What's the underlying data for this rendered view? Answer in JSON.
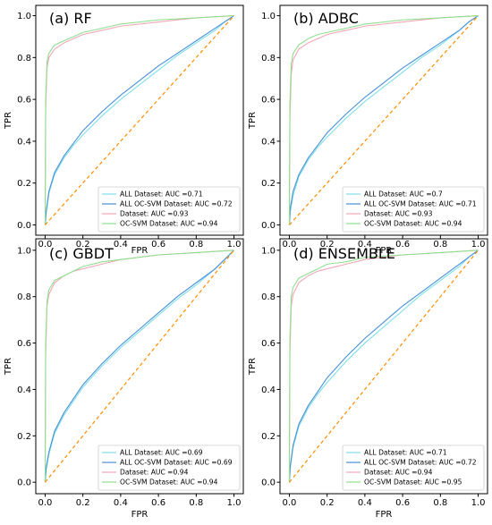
{
  "chart_data": [
    {
      "type": "line",
      "title": "(a) RF",
      "xlabel": "FPR",
      "ylabel": "TPR",
      "xlim": [
        0,
        1
      ],
      "ylim": [
        0,
        1
      ],
      "xticks": [
        "0.0",
        "0.2",
        "0.4",
        "0.6",
        "0.8",
        "1.0"
      ],
      "yticks": [
        "0.0",
        "0.2",
        "0.4",
        "0.6",
        "0.8",
        "1.0"
      ],
      "legend_position": "lower-right",
      "series": [
        {
          "name": "ALL Dataset: AUC =0.71",
          "color": "#7ee0e8",
          "x": [
            0,
            0.005,
            0.02,
            0.05,
            0.1,
            0.15,
            0.2,
            0.3,
            0.4,
            0.5,
            0.6,
            0.7,
            0.8,
            0.9,
            0.95,
            1.0
          ],
          "y": [
            0,
            0.05,
            0.15,
            0.24,
            0.32,
            0.38,
            0.43,
            0.52,
            0.6,
            0.67,
            0.74,
            0.81,
            0.87,
            0.93,
            0.97,
            1.0
          ]
        },
        {
          "name": "ALL OC-SVM Dataset: AUC =0.72",
          "color": "#4a90d9",
          "x": [
            0,
            0.005,
            0.02,
            0.05,
            0.1,
            0.15,
            0.2,
            0.3,
            0.4,
            0.5,
            0.6,
            0.7,
            0.8,
            0.9,
            0.95,
            1.0
          ],
          "y": [
            0,
            0.06,
            0.16,
            0.25,
            0.33,
            0.39,
            0.45,
            0.54,
            0.62,
            0.69,
            0.76,
            0.82,
            0.88,
            0.94,
            0.97,
            1.0
          ]
        },
        {
          "name": "Dataset: AUC =0.93",
          "color": "#f2a7b8",
          "x": [
            0,
            0.003,
            0.01,
            0.02,
            0.05,
            0.1,
            0.15,
            0.2,
            0.3,
            0.4,
            0.6,
            0.8,
            1.0
          ],
          "y": [
            0,
            0.55,
            0.75,
            0.8,
            0.84,
            0.87,
            0.89,
            0.91,
            0.93,
            0.95,
            0.97,
            0.99,
            1.0
          ]
        },
        {
          "name": "OC-SVM Dataset: AUC =0.94",
          "color": "#8fe08f",
          "x": [
            0,
            0.003,
            0.01,
            0.02,
            0.05,
            0.1,
            0.15,
            0.2,
            0.3,
            0.4,
            0.6,
            0.8,
            1.0
          ],
          "y": [
            0,
            0.6,
            0.78,
            0.82,
            0.86,
            0.88,
            0.9,
            0.92,
            0.94,
            0.96,
            0.98,
            0.99,
            1.0
          ]
        },
        {
          "name": "",
          "color": "#ff8c00",
          "dashed": true,
          "x": [
            0,
            1
          ],
          "y": [
            0,
            1
          ]
        }
      ]
    },
    {
      "type": "line",
      "title": "(b) ADBC",
      "xlabel": "FPR",
      "ylabel": "TPR",
      "xlim": [
        0,
        1
      ],
      "ylim": [
        0,
        1
      ],
      "xticks": [
        "0.0",
        "0.2",
        "0.4",
        "0.6",
        "0.8",
        "1.0"
      ],
      "yticks": [
        "0.0",
        "0.2",
        "0.4",
        "0.6",
        "0.8",
        "1.0"
      ],
      "legend_position": "lower-right",
      "series": [
        {
          "name": "ALL Dataset: AUC =0.7",
          "color": "#7ee0e8",
          "x": [
            0,
            0.005,
            0.02,
            0.05,
            0.1,
            0.15,
            0.2,
            0.3,
            0.4,
            0.5,
            0.6,
            0.7,
            0.8,
            0.9,
            0.95,
            1.0
          ],
          "y": [
            0,
            0.06,
            0.14,
            0.23,
            0.31,
            0.37,
            0.42,
            0.51,
            0.59,
            0.66,
            0.73,
            0.8,
            0.86,
            0.93,
            0.97,
            1.0
          ]
        },
        {
          "name": "ALL OC-SVM Dataset: AUC =0.71",
          "color": "#4a90d9",
          "x": [
            0,
            0.005,
            0.02,
            0.05,
            0.1,
            0.15,
            0.2,
            0.3,
            0.4,
            0.5,
            0.6,
            0.7,
            0.8,
            0.9,
            0.95,
            1.0
          ],
          "y": [
            0,
            0.08,
            0.16,
            0.24,
            0.32,
            0.38,
            0.44,
            0.53,
            0.61,
            0.68,
            0.75,
            0.81,
            0.87,
            0.93,
            0.97,
            1.0
          ]
        },
        {
          "name": "Dataset: AUC =0.93",
          "color": "#f2a7b8",
          "x": [
            0,
            0.003,
            0.01,
            0.02,
            0.05,
            0.1,
            0.15,
            0.2,
            0.3,
            0.4,
            0.6,
            0.8,
            1.0
          ],
          "y": [
            0,
            0.5,
            0.72,
            0.79,
            0.84,
            0.87,
            0.89,
            0.91,
            0.93,
            0.95,
            0.97,
            0.99,
            1.0
          ]
        },
        {
          "name": "OC-SVM Dataset: AUC =0.94",
          "color": "#8fe08f",
          "x": [
            0,
            0.003,
            0.01,
            0.02,
            0.05,
            0.1,
            0.15,
            0.2,
            0.3,
            0.4,
            0.6,
            0.8,
            1.0
          ],
          "y": [
            0,
            0.58,
            0.77,
            0.82,
            0.86,
            0.89,
            0.91,
            0.92,
            0.94,
            0.96,
            0.98,
            0.99,
            1.0
          ]
        },
        {
          "name": "",
          "color": "#ff8c00",
          "dashed": true,
          "x": [
            0,
            1
          ],
          "y": [
            0,
            1
          ]
        }
      ]
    },
    {
      "type": "line",
      "title": "(c) GBDT",
      "xlabel": "FPR",
      "ylabel": "TPR",
      "xlim": [
        0,
        1
      ],
      "ylim": [
        0,
        1
      ],
      "xticks": [
        "0.0",
        "0.2",
        "0.4",
        "0.6",
        "0.8",
        "1.0"
      ],
      "yticks": [
        "0.0",
        "0.2",
        "0.4",
        "0.6",
        "0.8",
        "1.0"
      ],
      "legend_position": "lower-right",
      "series": [
        {
          "name": "ALL Dataset: AUC =0.69",
          "color": "#7ee0e8",
          "x": [
            0,
            0.005,
            0.02,
            0.05,
            0.1,
            0.15,
            0.2,
            0.3,
            0.4,
            0.5,
            0.6,
            0.7,
            0.8,
            0.9,
            0.95,
            1.0
          ],
          "y": [
            0,
            0.05,
            0.12,
            0.21,
            0.29,
            0.35,
            0.41,
            0.5,
            0.58,
            0.65,
            0.72,
            0.79,
            0.85,
            0.92,
            0.96,
            1.0
          ]
        },
        {
          "name": "ALL OC-SVM Dataset: AUC =0.69",
          "color": "#4a90d9",
          "x": [
            0,
            0.005,
            0.02,
            0.05,
            0.1,
            0.15,
            0.2,
            0.3,
            0.4,
            0.5,
            0.6,
            0.7,
            0.8,
            0.9,
            0.95,
            1.0
          ],
          "y": [
            0,
            0.06,
            0.13,
            0.22,
            0.3,
            0.36,
            0.42,
            0.51,
            0.59,
            0.66,
            0.73,
            0.8,
            0.86,
            0.92,
            0.96,
            1.0
          ]
        },
        {
          "name": "Dataset: AUC =0.94",
          "color": "#f2a7b8",
          "x": [
            0,
            0.003,
            0.01,
            0.02,
            0.05,
            0.1,
            0.15,
            0.2,
            0.3,
            0.4,
            0.6,
            0.8,
            1.0
          ],
          "y": [
            0,
            0.55,
            0.76,
            0.81,
            0.86,
            0.89,
            0.91,
            0.92,
            0.94,
            0.96,
            0.98,
            0.99,
            1.0
          ]
        },
        {
          "name": "OC-SVM Dataset: AUC =0.94",
          "color": "#8fe08f",
          "x": [
            0,
            0.003,
            0.01,
            0.02,
            0.05,
            0.1,
            0.15,
            0.2,
            0.3,
            0.4,
            0.6,
            0.8,
            1.0
          ],
          "y": [
            0,
            0.6,
            0.78,
            0.83,
            0.87,
            0.89,
            0.91,
            0.93,
            0.95,
            0.96,
            0.98,
            0.99,
            1.0
          ]
        },
        {
          "name": "",
          "color": "#ff8c00",
          "dashed": true,
          "x": [
            0,
            1
          ],
          "y": [
            0,
            1
          ]
        }
      ]
    },
    {
      "type": "line",
      "title": "(d) ENSEMBLE",
      "xlabel": "FPR",
      "ylabel": "TPR",
      "xlim": [
        0,
        1
      ],
      "ylim": [
        0,
        1
      ],
      "xticks": [
        "0.0",
        "0.2",
        "0.4",
        "0.6",
        "0.8",
        "1.0"
      ],
      "yticks": [
        "0.0",
        "0.2",
        "0.4",
        "0.6",
        "0.8",
        "1.0"
      ],
      "legend_position": "lower-right",
      "series": [
        {
          "name": "ALL Dataset: AUC =0.71",
          "color": "#7ee0e8",
          "x": [
            0,
            0.005,
            0.02,
            0.05,
            0.1,
            0.15,
            0.2,
            0.3,
            0.4,
            0.5,
            0.6,
            0.7,
            0.8,
            0.9,
            0.95,
            1.0
          ],
          "y": [
            0,
            0.06,
            0.15,
            0.24,
            0.32,
            0.38,
            0.43,
            0.52,
            0.6,
            0.67,
            0.74,
            0.81,
            0.87,
            0.93,
            0.97,
            1.0
          ]
        },
        {
          "name": "ALL OC-SVM Dataset: AUC =0.72",
          "color": "#4a90d9",
          "x": [
            0,
            0.005,
            0.02,
            0.05,
            0.1,
            0.15,
            0.2,
            0.3,
            0.4,
            0.5,
            0.6,
            0.7,
            0.8,
            0.9,
            0.95,
            1.0
          ],
          "y": [
            0,
            0.07,
            0.16,
            0.25,
            0.33,
            0.39,
            0.45,
            0.54,
            0.62,
            0.69,
            0.76,
            0.82,
            0.88,
            0.94,
            0.97,
            1.0
          ]
        },
        {
          "name": "Dataset: AUC =0.94",
          "color": "#f2a7b8",
          "x": [
            0,
            0.003,
            0.01,
            0.02,
            0.05,
            0.1,
            0.15,
            0.2,
            0.3,
            0.4,
            0.6,
            0.8,
            1.0
          ],
          "y": [
            0,
            0.55,
            0.76,
            0.81,
            0.86,
            0.89,
            0.91,
            0.92,
            0.94,
            0.96,
            0.98,
            0.99,
            1.0
          ]
        },
        {
          "name": "OC-SVM Dataset: AUC =0.95",
          "color": "#8fe08f",
          "x": [
            0,
            0.003,
            0.01,
            0.02,
            0.05,
            0.1,
            0.15,
            0.2,
            0.3,
            0.4,
            0.6,
            0.8,
            1.0
          ],
          "y": [
            0,
            0.62,
            0.8,
            0.84,
            0.88,
            0.9,
            0.92,
            0.94,
            0.95,
            0.97,
            0.98,
            0.99,
            1.0
          ]
        },
        {
          "name": "",
          "color": "#ff8c00",
          "dashed": true,
          "x": [
            0,
            1
          ],
          "y": [
            0,
            1
          ]
        }
      ]
    }
  ]
}
